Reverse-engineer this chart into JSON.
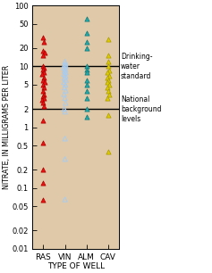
{
  "background_color": "#dfc9a8",
  "fig_background": "#ffffff",
  "xlim": [
    0.5,
    4.5
  ],
  "ylim_log": [
    0.01,
    100
  ],
  "hlines": [
    10,
    2
  ],
  "xlabel": "TYPE OF WELL",
  "ylabel": "NITRATE, IN MILLIGRAMS PER LITER",
  "xtick_labels": [
    "RAS",
    "VIN",
    "ALM",
    "CAV"
  ],
  "yticks": [
    0.01,
    0.02,
    0.05,
    0.1,
    0.2,
    0.5,
    1,
    2,
    5,
    10,
    20,
    50,
    100
  ],
  "ytick_labels": [
    "0.01",
    "0.02",
    "0.05",
    "0.1",
    "0.2",
    "0.5",
    "1",
    "2",
    "5",
    "10",
    "20",
    "50",
    "100"
  ],
  "annotation_drinking": "Drinking-\nwater\nstandard",
  "annotation_national": "National\nbackground\nlevels",
  "series": {
    "RAS": {
      "x_pos": 1,
      "color": "#ee1111",
      "edgecolor": "#aa0000",
      "filled": true,
      "values": [
        30,
        25,
        18,
        17,
        15,
        10,
        9.5,
        9,
        8,
        7.5,
        6.5,
        6,
        5.5,
        5,
        4.5,
        4,
        3.5,
        3.2,
        3,
        2.8,
        2.5,
        2.2,
        1.3,
        0.55,
        0.2,
        0.12,
        0.065
      ],
      "jitter": [
        0.0,
        0.03,
        -0.02,
        0.05,
        -0.04,
        0.0,
        0.04,
        -0.03,
        0.02,
        -0.05,
        0.03,
        -0.02,
        0.05,
        -0.04,
        0.02,
        -0.03,
        0.04,
        -0.01,
        0.03,
        -0.05,
        0.0,
        0.02,
        0.0,
        0.0,
        0.0,
        0.0,
        0.0
      ]
    },
    "VIN": {
      "x_pos": 2,
      "color": "#aaccee",
      "edgecolor": "#6699bb",
      "filled": false,
      "values": [
        12,
        11,
        10.5,
        10,
        9.5,
        9,
        8.5,
        8,
        7.5,
        7,
        6.5,
        6,
        5.5,
        5,
        4.5,
        4,
        3.5,
        3,
        2.5,
        2,
        1.8,
        0.65,
        0.3,
        0.065
      ],
      "jitter": [
        0.0,
        0.03,
        -0.03,
        0.05,
        -0.05,
        0.02,
        -0.02,
        0.04,
        -0.04,
        0.03,
        -0.03,
        0.05,
        -0.05,
        0.02,
        -0.02,
        0.04,
        -0.04,
        0.0,
        0.03,
        -0.03,
        0.0,
        0.0,
        0.0,
        0.0
      ]
    },
    "ALM": {
      "x_pos": 3,
      "color": "#22aaaa",
      "edgecolor": "#117777",
      "filled": true,
      "values": [
        60,
        35,
        25,
        20,
        10,
        9,
        8,
        6,
        5,
        4,
        3,
        2,
        1.5
      ],
      "jitter": [
        0.0,
        0.0,
        0.0,
        0.0,
        0.0,
        0.0,
        0.0,
        0.0,
        0.0,
        0.0,
        0.0,
        0.0,
        0.0
      ]
    },
    "CAV": {
      "x_pos": 4,
      "color": "#ddcc00",
      "edgecolor": "#aa9900",
      "filled": true,
      "values": [
        28,
        15,
        12,
        10,
        8.5,
        8,
        7,
        6.5,
        6,
        5.5,
        5,
        4.5,
        4,
        3.5,
        3,
        1.6,
        0.4
      ],
      "jitter": [
        0.0,
        0.0,
        0.0,
        0.0,
        0.03,
        -0.03,
        0.05,
        -0.05,
        0.02,
        -0.02,
        0.04,
        -0.04,
        0.0,
        0.03,
        -0.03,
        0.0,
        0.0
      ]
    }
  }
}
